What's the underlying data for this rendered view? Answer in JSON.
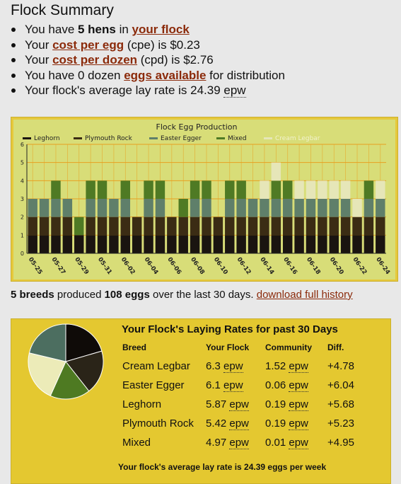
{
  "summary": {
    "title": "Flock Summary",
    "line1": {
      "pre": "You have ",
      "bold": "5 hens",
      "mid": " in ",
      "link": "your flock"
    },
    "line2": {
      "pre": "Your ",
      "link": "cost per egg",
      "post": " (cpe) is $0.23"
    },
    "line3": {
      "pre": "Your ",
      "link": "cost per dozen",
      "post": " (cpd) is $2.76"
    },
    "line4": {
      "pre": "You have 0 dozen ",
      "link": "eggs available",
      "post": " for distribution"
    },
    "line5": {
      "pre": "Your flock's average lay rate is 24.39 ",
      "unit": "epw"
    }
  },
  "chart_data": {
    "type": "bar",
    "stacked": true,
    "title": "Flock Egg Production",
    "ylim": [
      0,
      6
    ],
    "yticks": [
      "0",
      "1",
      "2",
      "3",
      "4",
      "5",
      "6"
    ],
    "grid": true,
    "legend_position": "top",
    "categories": [
      "05-25",
      "05-26",
      "05-27",
      "05-28",
      "05-29",
      "05-30",
      "05-31",
      "06-01",
      "06-02",
      "06-03",
      "06-04",
      "06-05",
      "06-06",
      "06-07",
      "06-08",
      "06-09",
      "06-10",
      "06-11",
      "06-12",
      "06-13",
      "06-14",
      "06-15",
      "06-16",
      "06-17",
      "06-18",
      "06-19",
      "06-20",
      "06-21",
      "06-22",
      "06-23",
      "06-24"
    ],
    "xtick_labels": [
      "05-25",
      "05-27",
      "05-29",
      "05-31",
      "06-02",
      "06-04",
      "06-06",
      "06-08",
      "06-10",
      "06-12",
      "06-14",
      "06-16",
      "06-18",
      "06-20",
      "06-22",
      "06-24"
    ],
    "colors": [
      "#1a1410",
      "#3b2c14",
      "#5f7f6a",
      "#4f7a24",
      "#e6e6b8"
    ],
    "series": [
      {
        "name": "Leghorn",
        "values": [
          1,
          1,
          1,
          1,
          1,
          1,
          1,
          1,
          1,
          1,
          1,
          1,
          1,
          1,
          1,
          1,
          1,
          1,
          1,
          1,
          1,
          1,
          1,
          1,
          1,
          1,
          1,
          1,
          1,
          1,
          1
        ]
      },
      {
        "name": "Plymouth Rock",
        "values": [
          1,
          1,
          1,
          1,
          0,
          1,
          1,
          1,
          1,
          1,
          1,
          1,
          1,
          1,
          1,
          1,
          1,
          1,
          1,
          1,
          1,
          1,
          1,
          1,
          1,
          1,
          1,
          1,
          1,
          1,
          1
        ]
      },
      {
        "name": "Easter Egger",
        "values": [
          1,
          1,
          1,
          1,
          0,
          1,
          1,
          1,
          1,
          0,
          1,
          1,
          0,
          0,
          1,
          1,
          0,
          1,
          1,
          1,
          1,
          1,
          1,
          1,
          1,
          1,
          1,
          1,
          0,
          1,
          1
        ]
      },
      {
        "name": "Mixed",
        "values": [
          0,
          0,
          1,
          0,
          1,
          1,
          1,
          0,
          1,
          0,
          1,
          1,
          0,
          1,
          1,
          1,
          0,
          1,
          1,
          0,
          0,
          1,
          1,
          0,
          0,
          0,
          0,
          0,
          0,
          1,
          0
        ]
      },
      {
        "name": "Cream Legbar",
        "values": [
          0,
          0,
          0,
          0,
          0,
          0,
          0,
          0,
          0,
          0,
          0,
          0,
          0,
          0,
          0,
          0,
          0,
          0,
          0,
          0,
          1,
          1,
          0,
          1,
          1,
          1,
          1,
          1,
          1,
          0,
          1
        ]
      }
    ]
  },
  "produced": {
    "breeds": "5 breeds",
    "text1": " produced ",
    "eggs": "108 eggs",
    "text2": " over the last 30 days. ",
    "link": "download full history"
  },
  "rates": {
    "title": "Your Flock's Laying Rates for past 30 Days",
    "headers": [
      "Breed",
      "Your Flock",
      "Community",
      "Diff."
    ],
    "unit": "epw",
    "rows": [
      {
        "breed": "Cream Legbar",
        "your": "6.3",
        "community": "1.52",
        "diff": "+4.78"
      },
      {
        "breed": "Easter Egger",
        "your": "6.1",
        "community": "0.06",
        "diff": "+6.04"
      },
      {
        "breed": "Leghorn",
        "your": "5.87",
        "community": "0.19",
        "diff": "+5.68"
      },
      {
        "breed": "Plymouth Rock",
        "your": "5.42",
        "community": "0.19",
        "diff": "+5.23"
      },
      {
        "breed": "Mixed",
        "your": "4.97",
        "community": "0.01",
        "diff": "+4.95"
      }
    ],
    "footer": "Your flock's average lay rate is 24.39 eggs per week",
    "pie": [
      {
        "breed": "Leghorn",
        "value": 5.87,
        "color": "#0f0b08"
      },
      {
        "breed": "Plymouth Rock",
        "value": 5.42,
        "color": "#2a2418"
      },
      {
        "breed": "Mixed",
        "value": 4.97,
        "color": "#4e7a22"
      },
      {
        "breed": "Cream Legbar",
        "value": 6.3,
        "color": "#ecebb8"
      },
      {
        "breed": "Easter Egger",
        "value": 6.1,
        "color": "#4c6e60"
      }
    ]
  }
}
